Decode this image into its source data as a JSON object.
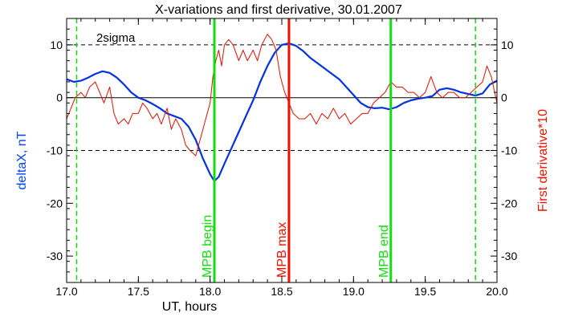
{
  "chart_data": {
    "type": "line",
    "title": "X-variations and first derivative, 30.01.2007",
    "xlabel": "UT, hours",
    "ylabel_left": "deltaX, nT",
    "ylabel_right": "First derivative*10",
    "xlim": [
      17.0,
      20.0
    ],
    "ylim": [
      -35,
      15
    ],
    "x_ticks": [
      "17.0",
      "17.5",
      "18.0",
      "18.5",
      "19.0",
      "19.5",
      "20.0"
    ],
    "y_ticks_left": [
      "10",
      "0",
      "-10",
      "-20",
      "-30"
    ],
    "y_ticks_right": [
      "10",
      "0",
      "-10",
      "-20",
      "-30"
    ],
    "y_tick_values": [
      10,
      0,
      -10,
      -20,
      -30
    ],
    "x_tick_values": [
      17.0,
      17.5,
      18.0,
      18.5,
      19.0,
      19.5,
      20.0
    ],
    "grid": false,
    "colors": {
      "deltaX": "#0033dd",
      "derivative": "#dd1100",
      "green": "#11dd11",
      "red_marker": "#ee1100",
      "left_label": "#0044ff",
      "right_label": "#ee1100"
    },
    "threshold": {
      "label": "2sigma",
      "values": [
        10,
        -10
      ]
    },
    "markers": [
      {
        "label": "MPB begin",
        "x": 18.03,
        "color": "green"
      },
      {
        "label": "MPB max",
        "x": 18.55,
        "color": "red"
      },
      {
        "label": "MPB end",
        "x": 19.26,
        "color": "green"
      }
    ],
    "dashed_markers": [
      17.07,
      19.85
    ],
    "series": [
      {
        "key": "deltaX",
        "x": [
          17.0,
          17.05,
          17.1,
          17.15,
          17.2,
          17.25,
          17.3,
          17.35,
          17.4,
          17.45,
          17.5,
          17.55,
          17.6,
          17.65,
          17.7,
          17.75,
          17.8,
          17.85,
          17.9,
          17.95,
          18.0,
          18.03,
          18.06,
          18.1,
          18.15,
          18.2,
          18.25,
          18.3,
          18.35,
          18.4,
          18.45,
          18.5,
          18.55,
          18.6,
          18.65,
          18.7,
          18.75,
          18.8,
          18.85,
          18.9,
          18.95,
          19.0,
          19.05,
          19.1,
          19.15,
          19.2,
          19.25,
          19.3,
          19.35,
          19.4,
          19.45,
          19.5,
          19.55,
          19.6,
          19.65,
          19.7,
          19.75,
          19.8,
          19.85,
          19.9,
          19.95,
          20.0
        ],
        "values": [
          3.5,
          3.0,
          3.2,
          3.8,
          4.5,
          5.0,
          4.7,
          3.8,
          2.5,
          1.0,
          0.0,
          -0.5,
          -1.2,
          -2.0,
          -3.0,
          -3.5,
          -4.0,
          -5.5,
          -8.0,
          -11.5,
          -14.5,
          -15.8,
          -15.0,
          -12.5,
          -9.5,
          -6.5,
          -3.5,
          -0.5,
          3.0,
          6.0,
          8.5,
          10.0,
          10.3,
          9.8,
          8.8,
          7.5,
          6.5,
          5.5,
          4.5,
          3.5,
          2.0,
          0.5,
          -1.0,
          -1.8,
          -2.0,
          -1.9,
          -2.2,
          -1.8,
          -1.0,
          -0.5,
          -0.2,
          0.0,
          0.3,
          1.5,
          1.8,
          1.5,
          1.0,
          0.7,
          0.4,
          0.8,
          2.5,
          3.2
        ]
      },
      {
        "key": "derivative",
        "x": [
          17.0,
          17.03,
          17.06,
          17.1,
          17.13,
          17.16,
          17.2,
          17.23,
          17.26,
          17.3,
          17.33,
          17.36,
          17.4,
          17.43,
          17.46,
          17.5,
          17.53,
          17.56,
          17.6,
          17.63,
          17.66,
          17.7,
          17.73,
          17.76,
          17.8,
          17.83,
          17.86,
          17.9,
          17.93,
          17.96,
          18.0,
          18.02,
          18.04,
          18.06,
          18.08,
          18.1,
          18.13,
          18.16,
          18.2,
          18.23,
          18.26,
          18.3,
          18.33,
          18.36,
          18.4,
          18.43,
          18.46,
          18.49,
          18.52,
          18.55,
          18.58,
          18.62,
          18.66,
          18.7,
          18.74,
          18.78,
          18.82,
          18.86,
          18.9,
          18.94,
          18.98,
          19.02,
          19.06,
          19.1,
          19.14,
          19.18,
          19.22,
          19.26,
          19.3,
          19.34,
          19.38,
          19.42,
          19.46,
          19.5,
          19.54,
          19.58,
          19.62,
          19.66,
          19.7,
          19.74,
          19.78,
          19.82,
          19.86,
          19.9,
          19.93,
          19.96,
          20.0
        ],
        "values": [
          -4,
          -2,
          0,
          1,
          0,
          2,
          3,
          1,
          -1,
          2,
          -3,
          -5,
          -4,
          -5,
          -3,
          -3,
          -1,
          -2,
          -4,
          -3,
          -5,
          -2,
          -6,
          -4,
          -6,
          -9,
          -10,
          -11,
          -8,
          -5,
          -1,
          4,
          7,
          9,
          6,
          10,
          11,
          10,
          7,
          9,
          7,
          9,
          7,
          10,
          12,
          11,
          9,
          4,
          1,
          -1,
          -3,
          -4,
          -4,
          -3,
          -5,
          -3,
          -4,
          -2,
          -4,
          -3,
          -5,
          -4,
          -3,
          -3,
          -1,
          0,
          1,
          3,
          2,
          2,
          1,
          1,
          0,
          1,
          4,
          1,
          0,
          1,
          1,
          0,
          0,
          1,
          2,
          3,
          6,
          4,
          -1
        ]
      }
    ]
  }
}
